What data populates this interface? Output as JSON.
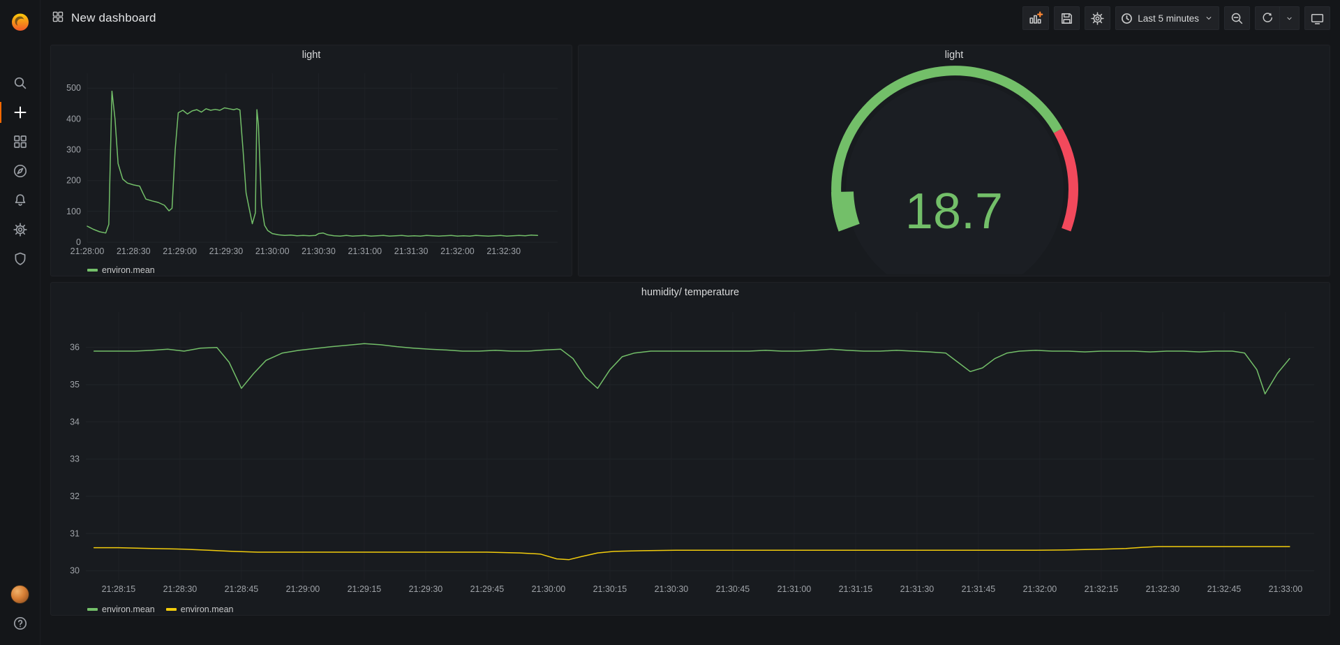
{
  "app": {
    "colors": {
      "background": "#141619",
      "panel": "#181b1f",
      "accent_orange": "#f46800",
      "green": "#73bf69",
      "yellow": "#f2cc0c",
      "red": "#f2495c"
    }
  },
  "navbar": {
    "title": "New dashboard",
    "time_range": "Last 5 minutes"
  },
  "icons": {
    "sidebar": [
      "grafana-logo",
      "search-icon",
      "plus-icon",
      "dashboards-icon",
      "explore-compass-icon",
      "alerting-bell-icon",
      "configuration-gear-icon",
      "server-admin-shield-icon",
      "user-avatar",
      "help-icon"
    ],
    "navbar_left": [
      "dashboard-squares-icon"
    ],
    "navbar_right": [
      "add-panel-icon",
      "save-icon",
      "settings-gear-icon",
      "clock-icon",
      "chevron-down-icon",
      "zoom-out-icon",
      "refresh-icon",
      "chevron-down-icon",
      "tv-icon"
    ]
  },
  "chart_data": [
    {
      "type": "line",
      "title": "light",
      "x_unit": "seconds after 21:28:00",
      "x_ticks": [
        "21:28:00",
        "21:28:30",
        "21:29:00",
        "21:29:30",
        "21:30:00",
        "21:30:30",
        "21:31:00",
        "21:31:30",
        "21:32:00",
        "21:32:30"
      ],
      "x_tick_seconds": [
        0,
        30,
        60,
        90,
        120,
        150,
        180,
        210,
        240,
        270
      ],
      "xlim": [
        0,
        305
      ],
      "ylim": [
        0,
        548
      ],
      "y_ticks": [
        0,
        100,
        200,
        300,
        400,
        500
      ],
      "grid": true,
      "legend_position": "bottom-left",
      "series": [
        {
          "name": "environ.mean",
          "color": "#73bf69",
          "points": [
            [
              0,
              52
            ],
            [
              4,
              42
            ],
            [
              8,
              34
            ],
            [
              12,
              30
            ],
            [
              14,
              58
            ],
            [
              16,
              490
            ],
            [
              18,
              400
            ],
            [
              20,
              255
            ],
            [
              23,
              205
            ],
            [
              26,
              192
            ],
            [
              30,
              186
            ],
            [
              34,
              182
            ],
            [
              36,
              160
            ],
            [
              38,
              140
            ],
            [
              42,
              134
            ],
            [
              46,
              129
            ],
            [
              50,
              120
            ],
            [
              53,
              102
            ],
            [
              55,
              110
            ],
            [
              57,
              300
            ],
            [
              59,
              420
            ],
            [
              62,
              428
            ],
            [
              65,
              416
            ],
            [
              68,
              426
            ],
            [
              71,
              430
            ],
            [
              74,
              422
            ],
            [
              77,
              433
            ],
            [
              80,
              428
            ],
            [
              83,
              431
            ],
            [
              86,
              428
            ],
            [
              89,
              436
            ],
            [
              92,
              433
            ],
            [
              95,
              430
            ],
            [
              97,
              433
            ],
            [
              99,
              429
            ],
            [
              101,
              300
            ],
            [
              103,
              160
            ],
            [
              105,
              110
            ],
            [
              107,
              60
            ],
            [
              109,
              95
            ],
            [
              110,
              430
            ],
            [
              111,
              380
            ],
            [
              113,
              120
            ],
            [
              115,
              55
            ],
            [
              117,
              38
            ],
            [
              120,
              28
            ],
            [
              124,
              24
            ],
            [
              128,
              22
            ],
            [
              132,
              23
            ],
            [
              136,
              21
            ],
            [
              140,
              22
            ],
            [
              144,
              21
            ],
            [
              148,
              22
            ],
            [
              150,
              28
            ],
            [
              153,
              30
            ],
            [
              156,
              24
            ],
            [
              160,
              21
            ],
            [
              164,
              20
            ],
            [
              168,
              22
            ],
            [
              172,
              20
            ],
            [
              176,
              21
            ],
            [
              180,
              22
            ],
            [
              184,
              20
            ],
            [
              188,
              21
            ],
            [
              192,
              22
            ],
            [
              196,
              20
            ],
            [
              200,
              21
            ],
            [
              204,
              22
            ],
            [
              208,
              20
            ],
            [
              212,
              21
            ],
            [
              216,
              20
            ],
            [
              220,
              22
            ],
            [
              224,
              21
            ],
            [
              228,
              20
            ],
            [
              232,
              21
            ],
            [
              236,
              22
            ],
            [
              240,
              20
            ],
            [
              244,
              21
            ],
            [
              248,
              20
            ],
            [
              252,
              22
            ],
            [
              256,
              21
            ],
            [
              260,
              20
            ],
            [
              264,
              21
            ],
            [
              268,
              22
            ],
            [
              272,
              20
            ],
            [
              276,
              21
            ],
            [
              280,
              22
            ],
            [
              284,
              21
            ],
            [
              288,
              23
            ],
            [
              292,
              22
            ]
          ]
        }
      ]
    },
    {
      "type": "gauge",
      "title": "light",
      "value": "18.7",
      "value_color": "#73bf69",
      "arc_span_deg": 220,
      "value_fraction": 0.085,
      "threshold_band": [
        {
          "from": 0,
          "to": 0.775,
          "color": "#73bf69"
        },
        {
          "from": 0.775,
          "to": 1,
          "color": "#f2495c"
        }
      ]
    },
    {
      "type": "line",
      "title": "humidity/ temperature",
      "x_unit": "seconds after 21:28:15",
      "x_ticks": [
        "21:28:15",
        "21:28:30",
        "21:28:45",
        "21:29:00",
        "21:29:15",
        "21:29:30",
        "21:29:45",
        "21:30:00",
        "21:30:15",
        "21:30:30",
        "21:30:45",
        "21:31:00",
        "21:31:15",
        "21:31:30",
        "21:31:45",
        "21:32:00",
        "21:32:15",
        "21:32:30",
        "21:32:45",
        "21:33:00"
      ],
      "x_tick_seconds": [
        0,
        15,
        30,
        45,
        60,
        75,
        90,
        105,
        120,
        135,
        150,
        165,
        180,
        195,
        210,
        225,
        240,
        255,
        270,
        285
      ],
      "xlim": [
        -8,
        292
      ],
      "ylim": [
        29.75,
        36.95
      ],
      "y_ticks": [
        30,
        31,
        32,
        33,
        34,
        35,
        36
      ],
      "grid": true,
      "legend_position": "bottom-left",
      "series": [
        {
          "name": "environ.mean",
          "color": "#73bf69",
          "points": [
            [
              -6,
              35.9
            ],
            [
              0,
              35.9
            ],
            [
              4,
              35.9
            ],
            [
              8,
              35.92
            ],
            [
              12,
              35.95
            ],
            [
              16,
              35.9
            ],
            [
              20,
              35.98
            ],
            [
              24,
              36.0
            ],
            [
              27,
              35.6
            ],
            [
              30,
              34.9
            ],
            [
              33,
              35.3
            ],
            [
              36,
              35.65
            ],
            [
              40,
              35.85
            ],
            [
              44,
              35.92
            ],
            [
              48,
              35.97
            ],
            [
              52,
              36.02
            ],
            [
              56,
              36.06
            ],
            [
              60,
              36.1
            ],
            [
              64,
              36.07
            ],
            [
              68,
              36.02
            ],
            [
              72,
              35.98
            ],
            [
              76,
              35.95
            ],
            [
              80,
              35.93
            ],
            [
              84,
              35.9
            ],
            [
              88,
              35.9
            ],
            [
              92,
              35.92
            ],
            [
              96,
              35.9
            ],
            [
              100,
              35.9
            ],
            [
              104,
              35.93
            ],
            [
              108,
              35.95
            ],
            [
              111,
              35.7
            ],
            [
              114,
              35.2
            ],
            [
              117,
              34.9
            ],
            [
              120,
              35.4
            ],
            [
              123,
              35.75
            ],
            [
              126,
              35.85
            ],
            [
              130,
              35.9
            ],
            [
              134,
              35.9
            ],
            [
              138,
              35.9
            ],
            [
              142,
              35.9
            ],
            [
              146,
              35.9
            ],
            [
              150,
              35.9
            ],
            [
              154,
              35.9
            ],
            [
              158,
              35.92
            ],
            [
              162,
              35.9
            ],
            [
              166,
              35.9
            ],
            [
              170,
              35.92
            ],
            [
              174,
              35.95
            ],
            [
              178,
              35.92
            ],
            [
              182,
              35.9
            ],
            [
              186,
              35.9
            ],
            [
              190,
              35.92
            ],
            [
              194,
              35.9
            ],
            [
              198,
              35.88
            ],
            [
              202,
              35.85
            ],
            [
              205,
              35.6
            ],
            [
              208,
              35.35
            ],
            [
              211,
              35.45
            ],
            [
              214,
              35.7
            ],
            [
              217,
              35.85
            ],
            [
              220,
              35.9
            ],
            [
              224,
              35.92
            ],
            [
              228,
              35.9
            ],
            [
              232,
              35.9
            ],
            [
              236,
              35.88
            ],
            [
              240,
              35.9
            ],
            [
              244,
              35.9
            ],
            [
              248,
              35.9
            ],
            [
              252,
              35.88
            ],
            [
              256,
              35.9
            ],
            [
              260,
              35.9
            ],
            [
              264,
              35.88
            ],
            [
              268,
              35.9
            ],
            [
              272,
              35.9
            ],
            [
              275,
              35.85
            ],
            [
              278,
              35.4
            ],
            [
              280,
              34.75
            ],
            [
              283,
              35.3
            ],
            [
              286,
              35.7
            ]
          ]
        },
        {
          "name": "environ.mean",
          "color": "#f2cc0c",
          "points": [
            [
              -6,
              30.62
            ],
            [
              0,
              30.62
            ],
            [
              8,
              30.6
            ],
            [
              16,
              30.58
            ],
            [
              22,
              30.55
            ],
            [
              28,
              30.52
            ],
            [
              34,
              30.5
            ],
            [
              42,
              30.5
            ],
            [
              50,
              30.5
            ],
            [
              58,
              30.5
            ],
            [
              66,
              30.5
            ],
            [
              74,
              30.5
            ],
            [
              82,
              30.5
            ],
            [
              90,
              30.5
            ],
            [
              98,
              30.48
            ],
            [
              103,
              30.45
            ],
            [
              107,
              30.32
            ],
            [
              110,
              30.3
            ],
            [
              113,
              30.38
            ],
            [
              117,
              30.48
            ],
            [
              121,
              30.52
            ],
            [
              128,
              30.54
            ],
            [
              136,
              30.55
            ],
            [
              144,
              30.55
            ],
            [
              152,
              30.55
            ],
            [
              160,
              30.55
            ],
            [
              168,
              30.55
            ],
            [
              176,
              30.55
            ],
            [
              184,
              30.55
            ],
            [
              192,
              30.55
            ],
            [
              200,
              30.55
            ],
            [
              208,
              30.55
            ],
            [
              216,
              30.55
            ],
            [
              224,
              30.55
            ],
            [
              232,
              30.56
            ],
            [
              240,
              30.58
            ],
            [
              246,
              30.6
            ],
            [
              250,
              30.63
            ],
            [
              254,
              30.65
            ],
            [
              262,
              30.65
            ],
            [
              270,
              30.65
            ],
            [
              278,
              30.65
            ],
            [
              286,
              30.65
            ]
          ]
        }
      ]
    }
  ]
}
